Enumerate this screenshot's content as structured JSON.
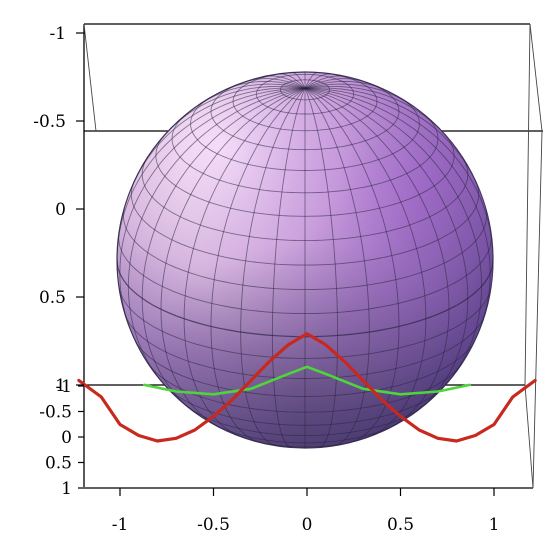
{
  "chart_data": {
    "type": "3d-surface",
    "surface": "unit sphere",
    "grid": true,
    "colors": {
      "sphere_light": "#fbe6fb",
      "sphere_mid": "#b487c6",
      "sphere_dark": "#4a3878",
      "red_curve": "#c8281e",
      "green_curve": "#4cd63a",
      "frame": "#000000"
    },
    "series": [
      {
        "color": "red",
        "x": [
          -1.22,
          -1.1,
          -1.0,
          -0.9,
          -0.8,
          -0.7,
          -0.6,
          -0.5,
          -0.4,
          -0.3,
          -0.2,
          -0.1,
          0.0,
          0.1,
          0.2,
          0.3,
          0.4,
          0.5,
          0.6,
          0.7,
          0.8,
          0.9,
          1.0,
          1.1,
          1.22
        ],
        "depth": [
          -0.5,
          -0.2,
          0.3,
          0.5,
          0.6,
          0.55,
          0.4,
          0.15,
          -0.15,
          -0.5,
          -0.85,
          -1.15,
          -1.35,
          -1.15,
          -0.85,
          -0.5,
          -0.15,
          0.15,
          0.4,
          0.55,
          0.6,
          0.5,
          0.3,
          -0.2,
          -0.5
        ]
      },
      {
        "color": "green",
        "x": [
          -0.87,
          -0.7,
          -0.5,
          -0.3,
          -0.1,
          0.0,
          0.1,
          0.3,
          0.5,
          0.7,
          0.87
        ],
        "depth": [
          -0.42,
          -0.3,
          -0.25,
          -0.35,
          -0.62,
          -0.75,
          -0.62,
          -0.35,
          -0.25,
          -0.3,
          -0.42
        ]
      }
    ],
    "axes": {
      "x": {
        "ticks": [
          "-1",
          "-0.5",
          "0",
          "0.5",
          "1"
        ],
        "values": [
          -1,
          -0.5,
          0,
          0.5,
          1
        ]
      },
      "y_back": {
        "ticks": [
          "-1",
          "-0.5",
          "0",
          "0.5",
          "1"
        ],
        "values": [
          -1,
          -0.5,
          0,
          0.5,
          1
        ]
      },
      "y_front": {
        "ticks": [
          "-1",
          "-0.5",
          "0",
          "0.5",
          "1"
        ],
        "values": [
          -1,
          -0.5,
          0,
          0.5,
          1
        ]
      }
    }
  }
}
